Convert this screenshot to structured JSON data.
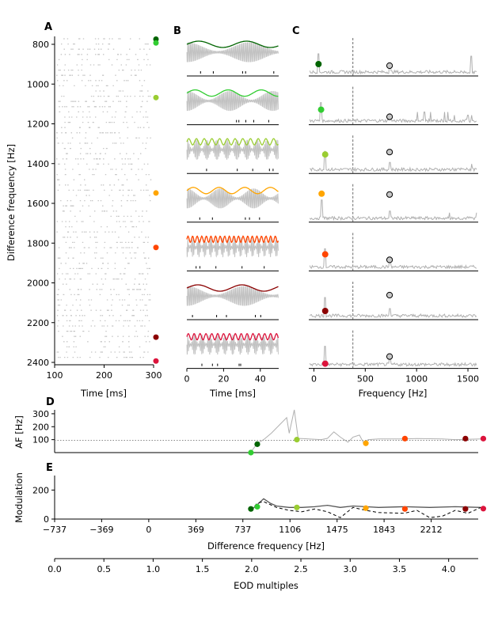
{
  "panel_letters": {
    "a": "A",
    "b": "B",
    "c": "C",
    "d": "D",
    "e": "E"
  },
  "colors": {
    "markers": [
      "#006400",
      "#32cd32",
      "#9acd32",
      "#ffa500",
      "#ff4500",
      "#8b0000",
      "#dc143c"
    ],
    "gray": "#b0b0b0",
    "mod_line": "#555555"
  },
  "chart_data": [
    {
      "type": "scatter",
      "panel": "A",
      "xlabel": "Time [ms]",
      "ylabel": "Difference frequency [Hz]",
      "xlim": [
        100,
        300
      ],
      "ylim": [
        2420,
        760
      ],
      "x_ticks": [
        "100",
        "200",
        "300"
      ],
      "y_ticks": [
        "800",
        "1000",
        "1200",
        "1400",
        "1600",
        "1800",
        "2000",
        "2200",
        "2400"
      ],
      "markers_df": [
        774,
        793,
        1068,
        1548,
        1822,
        2273,
        2393
      ]
    },
    {
      "type": "line",
      "panel": "B",
      "xlabel": "Time [ms]",
      "xlim": [
        0,
        50
      ],
      "x_ticks": [
        "0",
        "20",
        "40"
      ],
      "rows": 7
    },
    {
      "type": "line",
      "panel": "C",
      "xlabel": "Frequency [Hz]",
      "xlim": [
        -50,
        1600
      ],
      "x_ticks": [
        "0",
        "500",
        "1000",
        "1500"
      ],
      "dashed_x": 380,
      "reference_freq": 737,
      "peak_freqs": [
        45,
        70,
        110,
        75,
        110,
        110,
        110
      ]
    },
    {
      "type": "line",
      "panel": "D",
      "ylabel": "AF [Hz]",
      "xlim": [
        -737,
        2580
      ],
      "ylim": [
        0,
        330
      ],
      "y_ticks": [
        "100",
        "200",
        "300"
      ],
      "hline": 95,
      "points": [
        [
          850,
          65
        ],
        [
          800,
          0
        ],
        [
          1160,
          100
        ],
        [
          1700,
          72
        ],
        [
          2006,
          108
        ],
        [
          2480,
          108
        ],
        [
          2620,
          108
        ]
      ]
    },
    {
      "type": "line",
      "panel": "E",
      "ylabel": "Modulation",
      "xlabel": "Difference frequency [Hz]",
      "xlim": [
        -737,
        2580
      ],
      "ylim": [
        0,
        300
      ],
      "y_ticks": [
        "0",
        "200"
      ],
      "x_ticks": [
        "−737",
        "−369",
        "0",
        "369",
        "737",
        "1106",
        "1475",
        "1843",
        "2212"
      ],
      "second_axis_label": "EOD multiples",
      "second_axis_ticks": [
        "0.0",
        "0.5",
        "1.0",
        "1.5",
        "2.0",
        "2.5",
        "3.0",
        "3.5",
        "4.0"
      ]
    }
  ]
}
